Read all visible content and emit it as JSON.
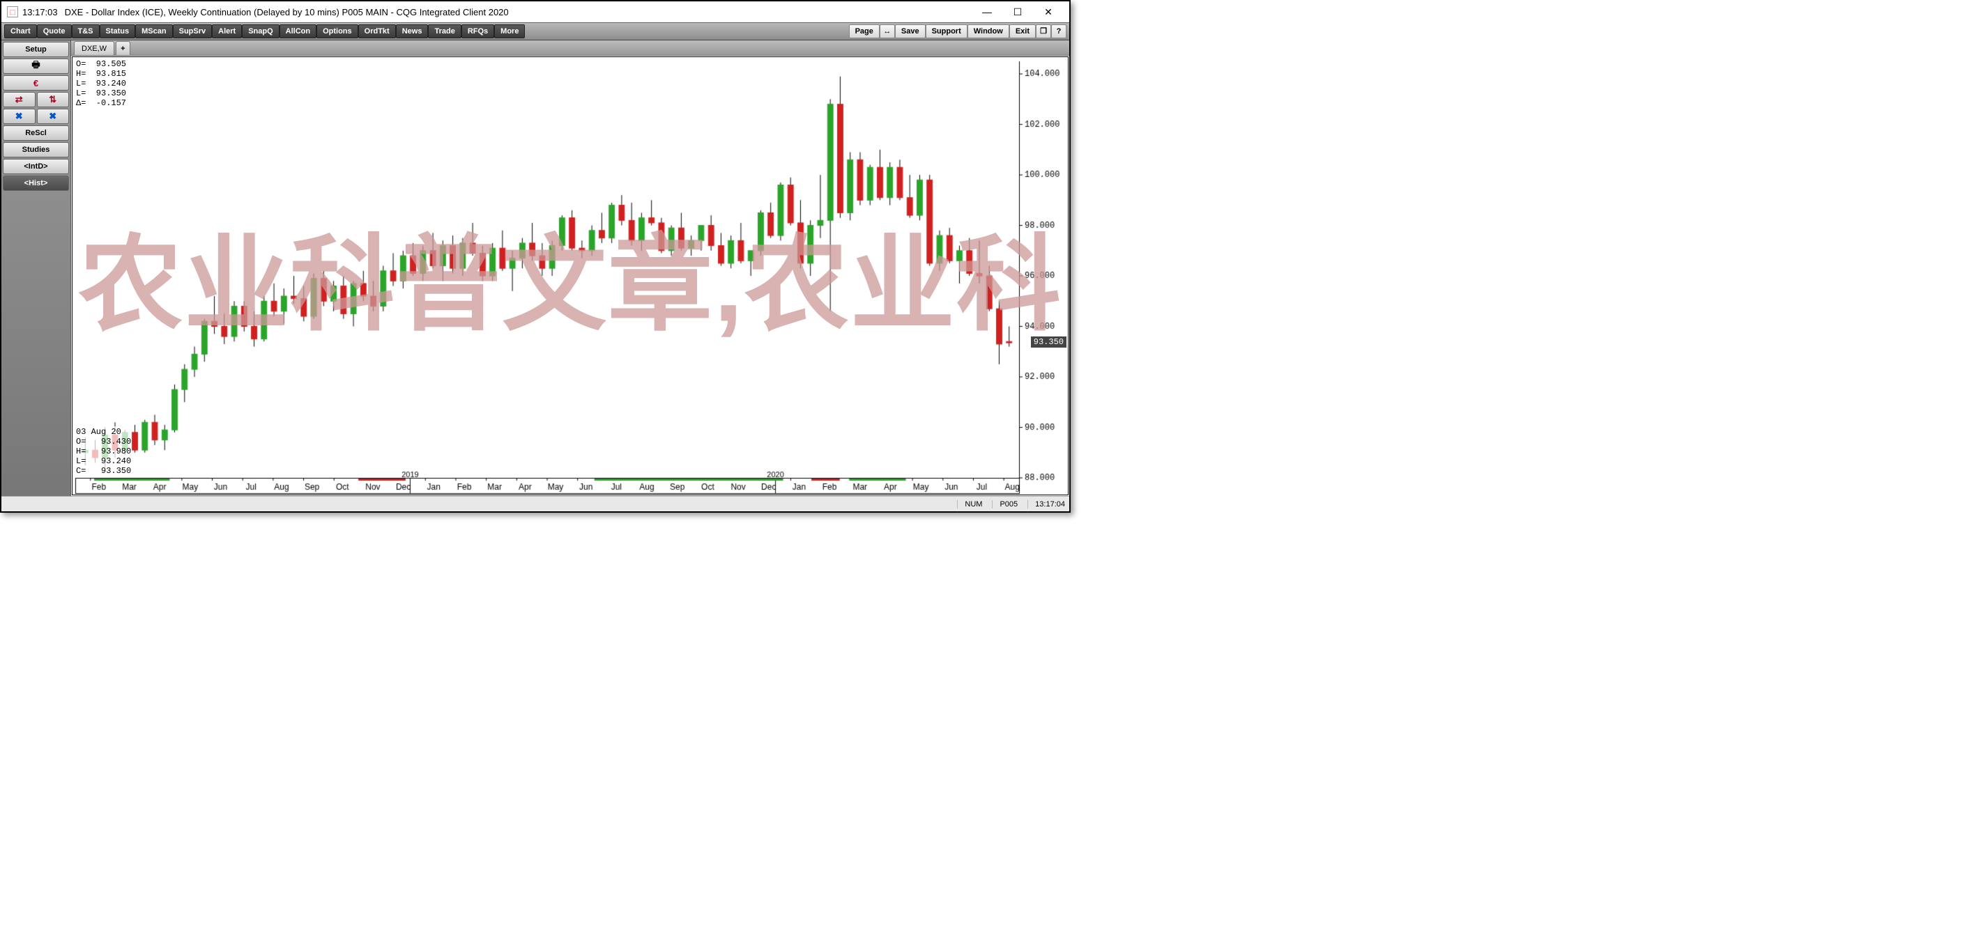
{
  "titlebar": {
    "time": "13:17:03",
    "title": "DXE - Dollar Index (ICE), Weekly Continuation (Delayed by 10 mins)    P005 MAIN - CQG Integrated Client 2020"
  },
  "menubar": {
    "left": [
      "Chart",
      "Quote",
      "T&S",
      "Status",
      "MScan",
      "SupSrv",
      "Alert",
      "SnapQ",
      "AllCon",
      "Options",
      "OrdTkt",
      "News",
      "Trade",
      "RFQs",
      "More"
    ],
    "right": [
      "Page",
      "↔",
      "Save",
      "Support",
      "Window",
      "Exit",
      "❐",
      "?"
    ]
  },
  "sidebar": {
    "setup": "Setup",
    "print": "🖶",
    "euro": "€",
    "arrows1": [
      "⇄",
      "⇅"
    ],
    "arrows2": [
      "✖",
      "✖"
    ],
    "rescl": "ReScl",
    "studies": "Studies",
    "intd": "<IntD>",
    "hist": "<Hist>"
  },
  "tab": {
    "label": "DXE,W",
    "add": "+"
  },
  "ohlc_top": {
    "O": "O=  93.505",
    "H": "H=  93.815",
    "L": "L=  93.240",
    "L2": "L=  93.350",
    "D": "Δ=  -0.157"
  },
  "ohlc_bottom": {
    "date": "03 Aug 20",
    "O": "O=   93.430",
    "H": "H=   93.980",
    "L": "L=   93.240",
    "C": "C=   93.350"
  },
  "chart": {
    "y_min": 88.0,
    "y_max": 104.5,
    "y_ticks": [
      88,
      90,
      92,
      94,
      96,
      98,
      100,
      102,
      104
    ],
    "y_tick_labels": [
      "88.000",
      "90.000",
      "92.000",
      "94.000",
      "96.000",
      "98.000",
      "100.000",
      "102.000",
      "104.000"
    ],
    "current_price": 93.35,
    "current_price_label": "93.350",
    "x_labels": [
      "Feb",
      "Mar",
      "Apr",
      "May",
      "Jun",
      "Jul",
      "Aug",
      "Sep",
      "Oct",
      "Nov",
      "Dec",
      "Jan",
      "Feb",
      "Mar",
      "Apr",
      "May",
      "Jun",
      "Jul",
      "Aug",
      "Sep",
      "Oct",
      "Nov",
      "Dec",
      "Jan",
      "Feb",
      "Mar",
      "Apr",
      "May",
      "Jun",
      "Jul",
      "Aug"
    ],
    "year_markers": [
      {
        "idx": 11,
        "label": "2019"
      },
      {
        "idx": 23,
        "label": "2020"
      }
    ],
    "up_color": "#2aa52a",
    "down_color": "#d02020",
    "wick_color": "#000000",
    "grid_color": "#e8e8e8",
    "axis_color": "#000000",
    "bg_color": "#ffffff",
    "candles": [
      [
        89.0,
        89.6,
        88.5,
        89.1
      ],
      [
        89.1,
        89.5,
        88.6,
        88.8
      ],
      [
        88.8,
        90.0,
        88.4,
        89.7
      ],
      [
        89.7,
        90.2,
        88.8,
        89.1
      ],
      [
        89.1,
        89.9,
        88.9,
        89.8
      ],
      [
        89.8,
        90.1,
        89.0,
        89.1
      ],
      [
        89.1,
        90.3,
        89.0,
        90.2
      ],
      [
        90.2,
        90.5,
        89.3,
        89.5
      ],
      [
        89.5,
        90.1,
        89.1,
        89.9
      ],
      [
        89.9,
        91.7,
        89.8,
        91.5
      ],
      [
        91.5,
        92.5,
        91.0,
        92.3
      ],
      [
        92.3,
        93.2,
        92.0,
        92.9
      ],
      [
        92.9,
        94.3,
        92.6,
        94.2
      ],
      [
        94.2,
        95.2,
        93.7,
        94.0
      ],
      [
        94.0,
        94.5,
        93.3,
        93.6
      ],
      [
        93.6,
        95.0,
        93.4,
        94.8
      ],
      [
        94.8,
        95.0,
        93.8,
        94.0
      ],
      [
        94.0,
        94.6,
        93.2,
        93.5
      ],
      [
        93.5,
        95.2,
        93.4,
        95.0
      ],
      [
        95.0,
        95.7,
        94.4,
        94.6
      ],
      [
        94.6,
        95.5,
        94.1,
        95.2
      ],
      [
        95.2,
        96.0,
        94.9,
        95.1
      ],
      [
        95.1,
        95.6,
        94.2,
        94.4
      ],
      [
        94.4,
        96.1,
        94.3,
        95.9
      ],
      [
        95.9,
        96.2,
        94.8,
        95.0
      ],
      [
        95.0,
        95.8,
        94.6,
        95.6
      ],
      [
        95.6,
        96.0,
        94.3,
        94.5
      ],
      [
        94.5,
        95.8,
        94.0,
        95.7
      ],
      [
        95.7,
        96.2,
        95.0,
        95.2
      ],
      [
        95.2,
        95.8,
        94.6,
        94.8
      ],
      [
        94.8,
        96.4,
        94.6,
        96.2
      ],
      [
        96.2,
        96.9,
        95.6,
        95.8
      ],
      [
        95.8,
        97.0,
        95.5,
        96.8
      ],
      [
        96.8,
        97.3,
        96.0,
        96.1
      ],
      [
        96.1,
        97.2,
        95.8,
        97.0
      ],
      [
        97.0,
        97.7,
        96.3,
        96.4
      ],
      [
        96.4,
        97.4,
        95.8,
        97.2
      ],
      [
        97.2,
        97.6,
        96.1,
        96.3
      ],
      [
        96.3,
        97.5,
        96.0,
        97.3
      ],
      [
        97.3,
        98.1,
        96.8,
        96.9
      ],
      [
        96.9,
        97.2,
        95.8,
        96.0
      ],
      [
        96.0,
        97.3,
        95.8,
        97.1
      ],
      [
        97.1,
        97.8,
        96.2,
        96.3
      ],
      [
        96.3,
        97.0,
        95.4,
        96.7
      ],
      [
        96.7,
        97.5,
        96.3,
        97.3
      ],
      [
        97.3,
        98.1,
        96.6,
        96.8
      ],
      [
        96.8,
        97.3,
        96.0,
        96.3
      ],
      [
        96.3,
        97.4,
        96.0,
        97.2
      ],
      [
        97.2,
        98.4,
        97.0,
        98.3
      ],
      [
        98.3,
        98.6,
        97.0,
        97.1
      ],
      [
        97.1,
        97.4,
        96.7,
        97.0
      ],
      [
        97.0,
        98.0,
        96.8,
        97.8
      ],
      [
        97.8,
        98.5,
        97.3,
        97.5
      ],
      [
        97.5,
        98.9,
        97.3,
        98.8
      ],
      [
        98.8,
        99.2,
        98.0,
        98.2
      ],
      [
        98.2,
        98.9,
        97.2,
        97.4
      ],
      [
        97.4,
        98.5,
        97.0,
        98.3
      ],
      [
        98.3,
        99.0,
        98.0,
        98.1
      ],
      [
        98.1,
        98.3,
        96.9,
        97.0
      ],
      [
        97.0,
        98.0,
        96.8,
        97.9
      ],
      [
        97.9,
        98.5,
        97.0,
        97.1
      ],
      [
        97.1,
        97.6,
        96.8,
        97.4
      ],
      [
        97.4,
        98.0,
        97.0,
        98.0
      ],
      [
        98.0,
        98.4,
        97.0,
        97.2
      ],
      [
        97.2,
        97.7,
        96.4,
        96.5
      ],
      [
        96.5,
        97.6,
        96.3,
        97.4
      ],
      [
        97.4,
        98.1,
        96.5,
        96.6
      ],
      [
        96.6,
        97.0,
        96.0,
        97.0
      ],
      [
        97.0,
        98.6,
        96.8,
        98.5
      ],
      [
        98.5,
        98.9,
        97.5,
        97.6
      ],
      [
        97.6,
        99.7,
        97.4,
        99.6
      ],
      [
        99.6,
        99.9,
        98.0,
        98.1
      ],
      [
        98.1,
        99.0,
        96.3,
        96.5
      ],
      [
        96.5,
        98.2,
        96.0,
        98.0
      ],
      [
        98.0,
        100.0,
        97.5,
        98.2
      ],
      [
        98.2,
        103.0,
        94.6,
        102.8
      ],
      [
        102.8,
        103.9,
        98.3,
        98.5
      ],
      [
        98.5,
        100.9,
        98.2,
        100.6
      ],
      [
        100.6,
        100.9,
        98.8,
        99.0
      ],
      [
        99.0,
        100.4,
        98.8,
        100.3
      ],
      [
        100.3,
        101.0,
        99.0,
        99.1
      ],
      [
        99.1,
        100.5,
        98.8,
        100.3
      ],
      [
        100.3,
        100.6,
        99.0,
        99.1
      ],
      [
        99.1,
        100.0,
        98.3,
        98.4
      ],
      [
        98.4,
        100.0,
        98.2,
        99.8
      ],
      [
        99.8,
        100.0,
        96.4,
        96.5
      ],
      [
        96.5,
        97.8,
        96.2,
        97.6
      ],
      [
        97.6,
        97.9,
        96.5,
        96.6
      ],
      [
        96.6,
        97.2,
        95.7,
        97.0
      ],
      [
        97.0,
        97.5,
        96.0,
        96.1
      ],
      [
        96.1,
        97.4,
        95.7,
        96.0
      ],
      [
        96.0,
        96.4,
        94.6,
        94.7
      ],
      [
        94.7,
        95.0,
        92.5,
        93.3
      ],
      [
        93.4,
        94.0,
        93.2,
        93.35
      ]
    ]
  },
  "watermark": "农业科普文章,农业科",
  "statusbar": {
    "num": "NUM",
    "p": "P005",
    "time": "13:17:04"
  }
}
